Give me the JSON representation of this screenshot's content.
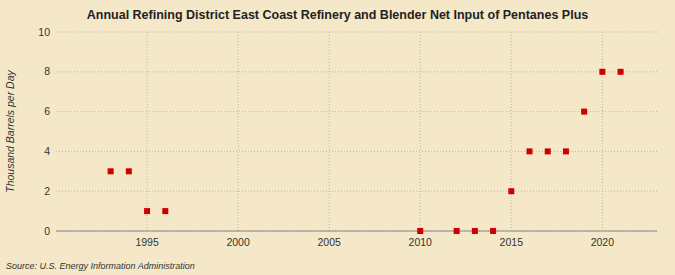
{
  "chart_data": {
    "type": "scatter",
    "title": "Annual Refining District East Coast Refinery and Blender Net Input of Pentanes Plus",
    "y_label": "Thousand Barrels per Day",
    "source": "Source: U.S. Energy Information Administration",
    "x": [
      1993,
      1994,
      1995,
      1996,
      2010,
      2012,
      2013,
      2014,
      2015,
      2016,
      2017,
      2018,
      2019,
      2020,
      2021
    ],
    "values": [
      3,
      3,
      1,
      1,
      0,
      0,
      0,
      0,
      2,
      4,
      4,
      4,
      6,
      8,
      8
    ],
    "color": "#cc0000",
    "marker": "square",
    "xlim": [
      1990,
      2023
    ],
    "ylim": [
      0,
      10
    ],
    "xticks": [
      1995,
      2000,
      2005,
      2010,
      2015,
      2020
    ],
    "yticks": [
      0,
      2,
      4,
      6,
      8,
      10
    ],
    "grid": true
  }
}
